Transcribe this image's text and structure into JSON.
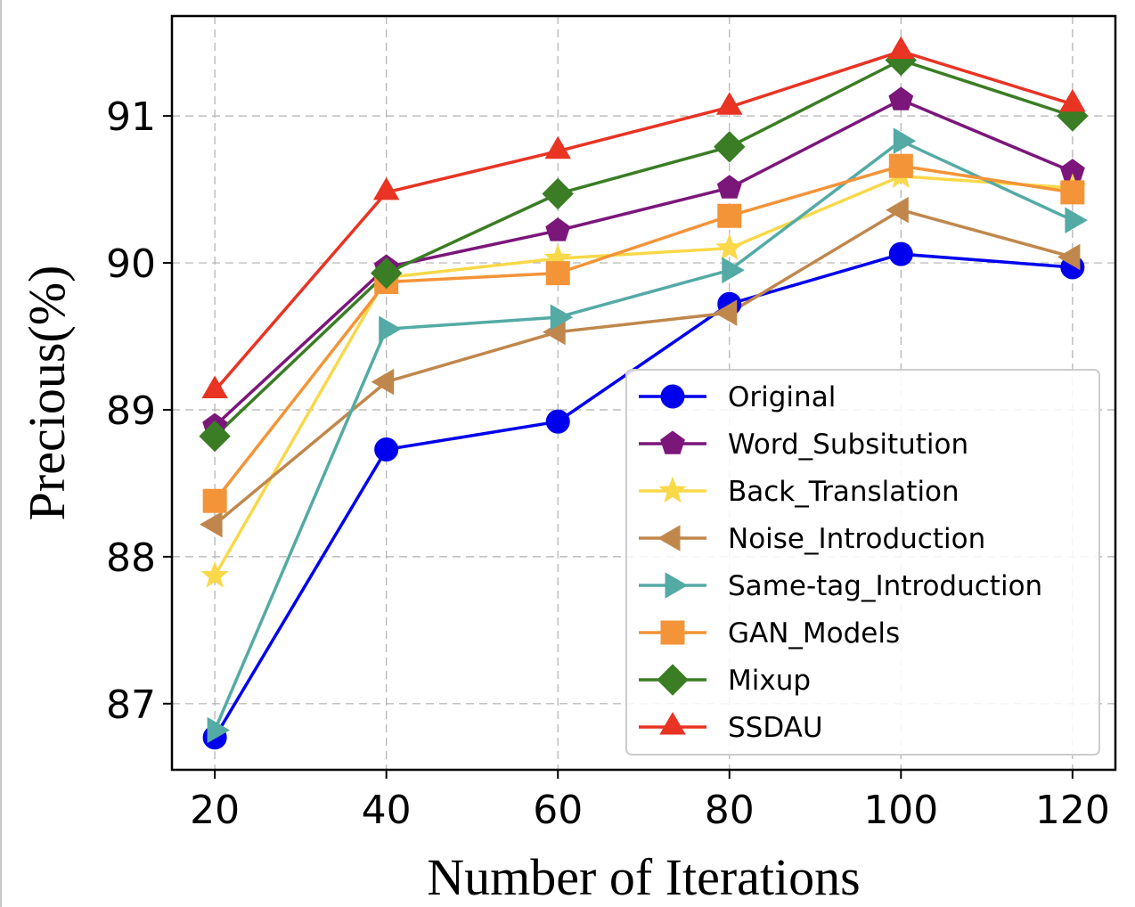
{
  "chart_data": {
    "type": "line",
    "title": "",
    "xlabel": "Number of Iterations",
    "ylabel": "Precious(%)",
    "x": [
      20,
      40,
      60,
      80,
      100,
      120
    ],
    "xticks": [
      "20",
      "40",
      "60",
      "80",
      "100",
      "120"
    ],
    "yticks": [
      "87",
      "88",
      "89",
      "90",
      "91"
    ],
    "xlim": [
      15,
      125
    ],
    "ylim": [
      86.55,
      91.68
    ],
    "grid": true,
    "legend_position": "lower-right",
    "series": [
      {
        "name": "Original",
        "color": "#0000ee",
        "marker": "circle",
        "values": [
          86.77,
          88.73,
          88.92,
          89.72,
          90.06,
          89.97
        ]
      },
      {
        "name": "Word_Subsitution",
        "color": "#7b167b",
        "marker": "pentagon",
        "values": [
          88.89,
          89.97,
          90.22,
          90.51,
          91.11,
          90.62
        ]
      },
      {
        "name": "Back_Translation",
        "color": "#f9d84a",
        "marker": "star",
        "values": [
          87.87,
          89.9,
          90.03,
          90.1,
          90.59,
          90.51
        ]
      },
      {
        "name": "Noise_Introduction",
        "color": "#c0874c",
        "marker": "triangle-left",
        "values": [
          88.22,
          89.19,
          89.53,
          89.66,
          90.36,
          90.04
        ]
      },
      {
        "name": "Same-tag_Introduction",
        "color": "#54aaa5",
        "marker": "triangle-right",
        "values": [
          86.82,
          89.55,
          89.63,
          89.95,
          90.83,
          90.29
        ]
      },
      {
        "name": "GAN_Models",
        "color": "#f39438",
        "marker": "square",
        "values": [
          88.38,
          89.87,
          89.93,
          90.32,
          90.66,
          90.48
        ]
      },
      {
        "name": "Mixup",
        "color": "#3a7d24",
        "marker": "diamond",
        "values": [
          88.82,
          89.93,
          90.47,
          90.79,
          91.38,
          91.0
        ]
      },
      {
        "name": "SSDAU",
        "color": "#e93323",
        "marker": "triangle-up",
        "values": [
          89.13,
          90.48,
          90.76,
          91.06,
          91.44,
          91.08
        ]
      }
    ]
  }
}
